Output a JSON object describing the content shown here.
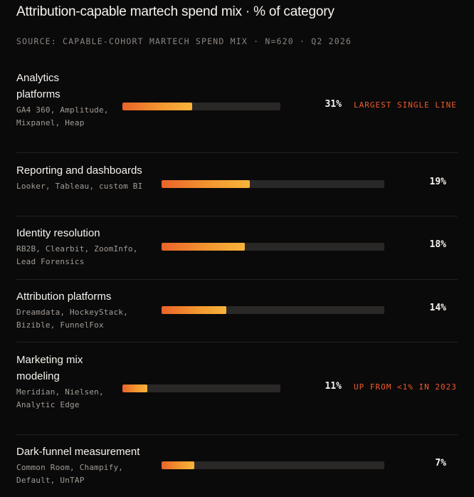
{
  "title": "Attribution-capable martech spend mix · % of category",
  "source": "SOURCE: CAPABLE-COHORT MARTECH SPEND MIX · N=620 · Q2 2026",
  "colors": {
    "background": "#0b0a0a",
    "bar_start": "#e9642a",
    "bar_end": "#f7b43b",
    "track": "#2a2827",
    "note": "#ee5a2e"
  },
  "chart_data": {
    "type": "bar",
    "orientation": "horizontal",
    "title": "Attribution-capable martech spend mix · % of category",
    "unit": "%",
    "xlim": [
      0,
      100
    ],
    "grid": false,
    "categories": [
      "Analytics platforms",
      "Reporting and dashboards",
      "Identity resolution",
      "Attribution platforms",
      "Marketing mix modeling",
      "Dark-funnel measurement"
    ],
    "values": [
      31,
      19,
      18,
      14,
      11,
      7
    ],
    "items": [
      {
        "label": "Analytics platforms",
        "vendors": "GA4 360, Amplitude, Mixpanel, Heap",
        "value": 31,
        "value_label": "31%",
        "note": "LARGEST SINGLE LINE"
      },
      {
        "label": "Reporting and dashboards",
        "vendors": "Looker, Tableau, custom BI",
        "value": 19,
        "value_label": "19%",
        "note": ""
      },
      {
        "label": "Identity resolution",
        "vendors": "RB2B, Clearbit, ZoomInfo, Lead Forensics",
        "value": 18,
        "value_label": "18%",
        "note": ""
      },
      {
        "label": "Attribution platforms",
        "vendors": "Dreamdata, HockeyStack, Bizible, FunnelFox",
        "value": 14,
        "value_label": "14%",
        "note": ""
      },
      {
        "label": "Marketing mix modeling",
        "vendors": "Meridian, Nielsen, Analytic Edge",
        "value": 11,
        "value_label": "11%",
        "note": "UP FROM <1% IN 2023"
      },
      {
        "label": "Dark-funnel measurement",
        "vendors": "Common Room, Champify, Default, UnTAP",
        "value": 7,
        "value_label": "7%",
        "note": ""
      }
    ]
  }
}
